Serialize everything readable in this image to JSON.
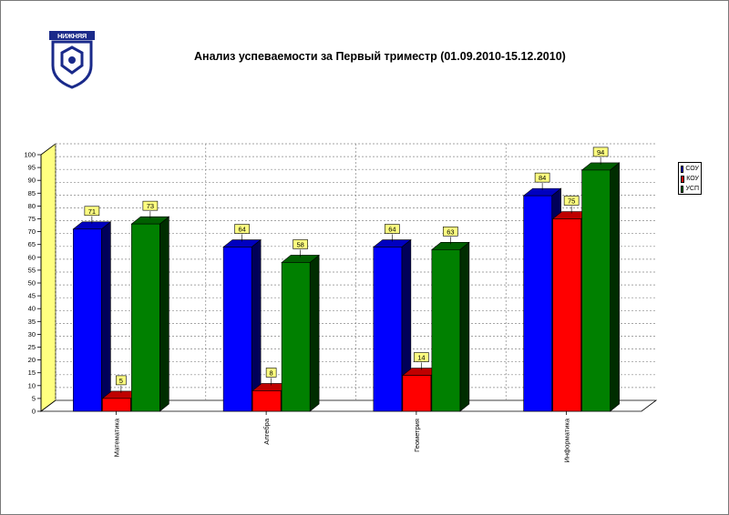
{
  "logo": {
    "text": "НИЖНЯЯ ШКОЛА",
    "icon": "school-emblem-icon"
  },
  "chart_data": {
    "type": "bar",
    "title": "Анализ успеваемости за Первый триместр (01.09.2010-15.12.2010)",
    "categories": [
      "Математика",
      "Алгебра",
      "Геометрия",
      "Информатика"
    ],
    "series": [
      {
        "name": "СОУ",
        "color": "#0000FF",
        "values": [
          71,
          64,
          64,
          84
        ]
      },
      {
        "name": "КОУ",
        "color": "#FF0000",
        "values": [
          5,
          8,
          14,
          75
        ]
      },
      {
        "name": "УСП",
        "color": "#008000",
        "values": [
          73,
          58,
          63,
          94
        ]
      }
    ],
    "ylim": [
      0,
      100
    ],
    "yticks": [
      0,
      5,
      10,
      15,
      20,
      25,
      30,
      35,
      40,
      45,
      50,
      55,
      60,
      65,
      70,
      75,
      80,
      85,
      90,
      95,
      100
    ],
    "grid": true,
    "legend": "right",
    "style": "3d"
  }
}
